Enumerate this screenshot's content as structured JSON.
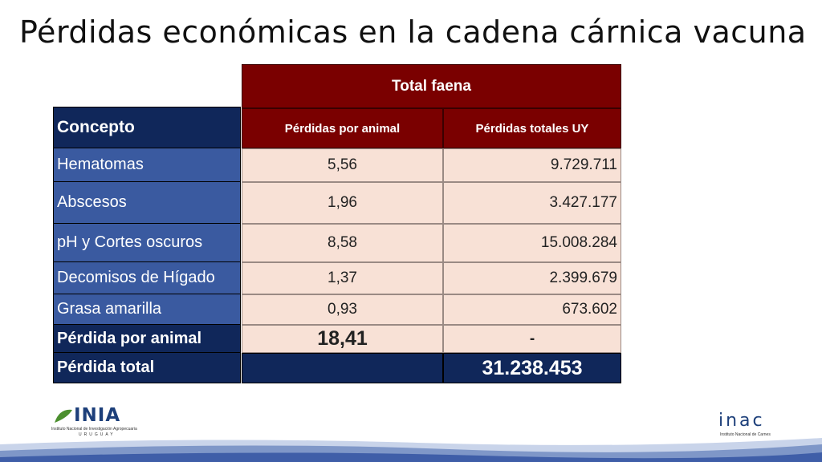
{
  "title": "Pérdidas económicas en la cadena cárnica vacuna",
  "table": {
    "group_header": "Total faena",
    "concept_header": "Concepto",
    "col1_header": "Pérdidas por animal",
    "col2_header": "Pérdidas totales UY",
    "rows": [
      {
        "label": "Hematomas",
        "per_animal": "5,56",
        "total": "9.729.711"
      },
      {
        "label": "Abscesos",
        "per_animal": "1,96",
        "total": "3.427.177"
      },
      {
        "label": "pH y Cortes oscuros",
        "per_animal": "8,58",
        "total": "15.008.284"
      },
      {
        "label": "Decomisos de Hígado",
        "per_animal": "1,37",
        "total": "2.399.679"
      },
      {
        "label": "Grasa amarilla",
        "per_animal": "0,93",
        "total": "673.602"
      }
    ],
    "per_animal_row": {
      "label": "Pérdida por animal",
      "value": "18,41",
      "total": "-"
    },
    "total_row": {
      "label": "Pérdida total",
      "value": "31.238.453"
    }
  },
  "logos": {
    "inia_mark": "INIA",
    "inia_subtitle": "Instituto Nacional de Investigación Agropecuaria",
    "inia_country": "URUGUAY",
    "inac_mark": "inac",
    "inac_subtitle": "Instituto Nacional de Carnes"
  },
  "colors": {
    "header_red": "#7a0000",
    "navy": "#10275a",
    "label_blue": "#3a5aa0",
    "cell_peach": "#f8e1d6"
  }
}
